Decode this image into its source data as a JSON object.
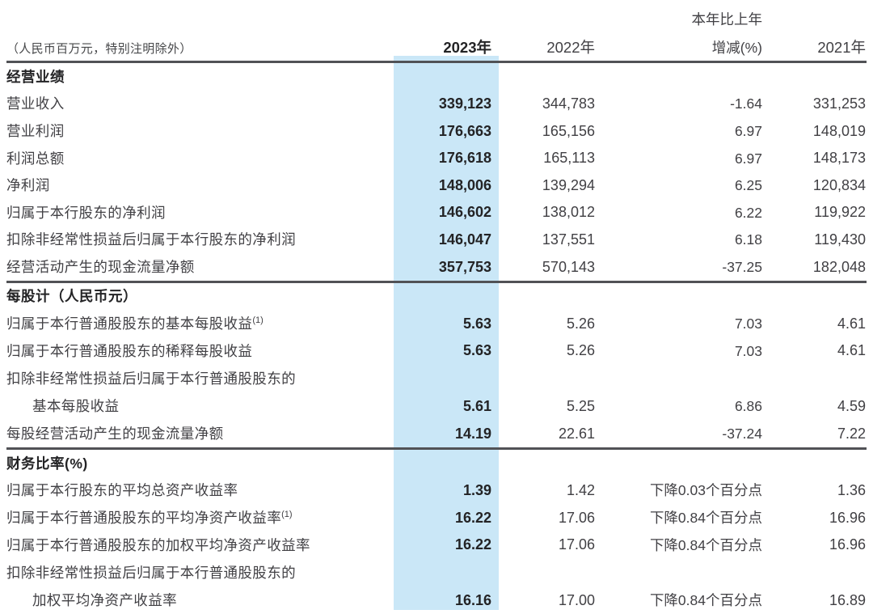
{
  "table": {
    "unit_note": "（人民币百万元，特别注明除外）",
    "header": {
      "col2023": "2023年",
      "col2022": "2022年",
      "change_line1": "本年比上年",
      "change_line2": "增减(%)",
      "col2021": "2021年"
    },
    "colors": {
      "highlight_column": "#cae7f7",
      "rule": "#515256",
      "bold_text": "#232325",
      "body_text": "#414044"
    },
    "sections": [
      {
        "title": "经营业绩",
        "rows": [
          {
            "label": "营业收入",
            "v2023": "339,123",
            "v2022": "344,783",
            "change": "-1.64",
            "v2021": "331,253"
          },
          {
            "label": "营业利润",
            "v2023": "176,663",
            "v2022": "165,156",
            "change": "6.97",
            "v2021": "148,019"
          },
          {
            "label": "利润总额",
            "v2023": "176,618",
            "v2022": "165,113",
            "change": "6.97",
            "v2021": "148,173"
          },
          {
            "label": "净利润",
            "v2023": "148,006",
            "v2022": "139,294",
            "change": "6.25",
            "v2021": "120,834"
          },
          {
            "label": "归属于本行股东的净利润",
            "v2023": "146,602",
            "v2022": "138,012",
            "change": "6.22",
            "v2021": "119,922"
          },
          {
            "label": "扣除非经常性损益后归属于本行股东的净利润",
            "v2023": "146,047",
            "v2022": "137,551",
            "change": "6.18",
            "v2021": "119,430"
          },
          {
            "label": "经营活动产生的现金流量净额",
            "v2023": "357,753",
            "v2022": "570,143",
            "change": "-37.25",
            "v2021": "182,048"
          }
        ]
      },
      {
        "title": "每股计（人民币元）",
        "rows": [
          {
            "label": "归属于本行普通股股东的基本每股收益",
            "sup": "(1)",
            "v2023": "5.63",
            "v2022": "5.26",
            "change": "7.03",
            "v2021": "4.61"
          },
          {
            "label": "归属于本行普通股股东的稀释每股收益",
            "v2023": "5.63",
            "v2022": "5.26",
            "change": "7.03",
            "v2021": "4.61"
          },
          {
            "label": "扣除非经常性损益后归属于本行普通股股东的",
            "label2": "基本每股收益",
            "v2023": "5.61",
            "v2022": "5.25",
            "change": "6.86",
            "v2021": "4.59"
          },
          {
            "label": "每股经营活动产生的现金流量净额",
            "v2023": "14.19",
            "v2022": "22.61",
            "change": "-37.24",
            "v2021": "7.22"
          }
        ]
      },
      {
        "title": "财务比率(%)",
        "rows": [
          {
            "label": "归属于本行股东的平均总资产收益率",
            "v2023": "1.39",
            "v2022": "1.42",
            "change": "下降0.03个百分点",
            "v2021": "1.36"
          },
          {
            "label": "归属于本行普通股股东的平均净资产收益率",
            "sup": "(1)",
            "v2023": "16.22",
            "v2022": "17.06",
            "change": "下降0.84个百分点",
            "v2021": "16.96"
          },
          {
            "label": "归属于本行普通股股东的加权平均净资产收益率",
            "v2023": "16.22",
            "v2022": "17.06",
            "change": "下降0.84个百分点",
            "v2021": "16.96"
          },
          {
            "label": "扣除非经常性损益后归属于本行普通股股东的",
            "label2": "加权平均净资产收益率",
            "v2023": "16.16",
            "v2022": "17.00",
            "change": "下降0.84个百分点",
            "v2021": "16.89"
          }
        ]
      }
    ]
  }
}
